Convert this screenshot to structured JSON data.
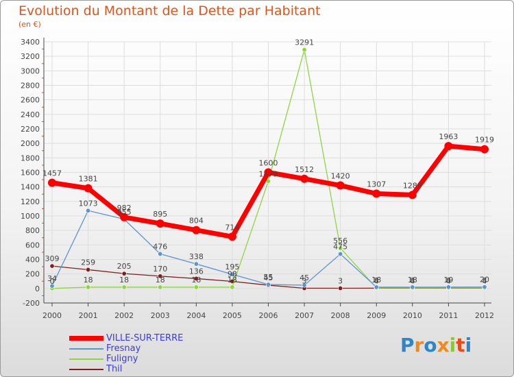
{
  "colors": {
    "title": "#e0541b",
    "axis": "#444444",
    "grid": "#dddddd",
    "label": "#444444"
  },
  "chart_data": {
    "type": "line",
    "title": "Evolution du Montant de la Dette par Habitant",
    "subtitle": "(en €)",
    "x": [
      "2000",
      "2001",
      "2002",
      "2003",
      "2004",
      "2005",
      "2006",
      "2007",
      "2008",
      "2009",
      "2010",
      "2011",
      "2012"
    ],
    "ylim": [
      -200,
      3400
    ],
    "yticks": [
      "-200",
      "0",
      "200",
      "400",
      "600",
      "800",
      "1000",
      "1200",
      "1400",
      "1600",
      "1800",
      "2000",
      "2200",
      "2400",
      "2600",
      "2800",
      "3000",
      "3200",
      "3400"
    ],
    "series": [
      {
        "name": "VILLE-SUR-TERRE",
        "color": "#ff0000",
        "values": [
          1457,
          1381,
          982,
          895,
          804,
          714,
          1600,
          1512,
          1420,
          1307,
          1289,
          1963,
          1919
        ],
        "labels": [
          "1457",
          "1381",
          "982",
          "895",
          "804",
          "714",
          "1600",
          "1512",
          "1420",
          "1307",
          "1289",
          "1963",
          "1919"
        ]
      },
      {
        "name": "Fresnay",
        "color": "#5d94cd",
        "values": [
          34,
          1073,
          955,
          476,
          338,
          195,
          55,
          45,
          475,
          18,
          18,
          19,
          20
        ],
        "labels": [
          "34",
          "1073",
          "955",
          "476",
          "338",
          "195",
          "55",
          "45",
          "475",
          "18",
          "18",
          "19",
          "20"
        ]
      },
      {
        "name": "Fuligny",
        "color": "#8ed63c",
        "values": [
          0,
          18,
          18,
          18,
          18,
          18,
          1479,
          3291,
          556,
          8,
          8,
          8,
          8
        ],
        "labels": [
          "0",
          "18",
          "18",
          "18",
          "18",
          "18",
          "1479",
          "3291",
          "556",
          "8",
          "8",
          "8",
          "8"
        ]
      },
      {
        "name": "Thil",
        "color": "#7a2020",
        "values": [
          309,
          259,
          205,
          170,
          136,
          98,
          45,
          3,
          3,
          4,
          4,
          4,
          4
        ],
        "labels": [
          "309",
          "259",
          "205",
          "170",
          "136",
          "98",
          "45",
          "3",
          "3",
          "4",
          "4",
          "4",
          "4"
        ]
      }
    ]
  },
  "logo": {
    "letters": [
      "P",
      "r",
      "o",
      "x",
      "i",
      "t",
      "i"
    ],
    "colors": [
      "#2e86c8",
      "#f08a1c",
      "#2e86c8",
      "#f08a1c",
      "#8cc63f",
      "#e84a1a",
      "#2e86c8"
    ]
  }
}
